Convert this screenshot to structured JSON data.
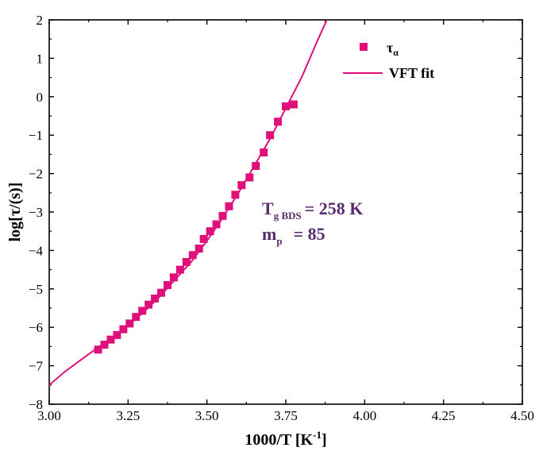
{
  "chart_data": {
    "type": "scatter",
    "xlabel": {
      "base": "1000/T [K",
      "sup": "-1",
      "end": "]"
    },
    "ylabel": "log[τ/(s)]",
    "xlim": [
      3.0,
      4.5
    ],
    "ylim": [
      -8,
      2
    ],
    "xticks": [
      "3.00",
      "3.25",
      "3.50",
      "3.75",
      "4.00",
      "4.25",
      "4.50"
    ],
    "yticks": [
      "2",
      "1",
      "0",
      "−1",
      "−2",
      "−3",
      "−4",
      "−5",
      "−6",
      "−7",
      "−8"
    ],
    "colors": {
      "series": "#e0107a",
      "annotation": "#5a2a6e",
      "axis": "#000000"
    },
    "series": [
      {
        "name": "τα",
        "name_base": "τ",
        "name_sub": "α",
        "kind": "scatter",
        "marker": "square",
        "x": [
          3.155,
          3.175,
          3.195,
          3.215,
          3.235,
          3.255,
          3.275,
          3.295,
          3.315,
          3.335,
          3.355,
          3.375,
          3.395,
          3.415,
          3.435,
          3.455,
          3.475,
          3.49,
          3.51,
          3.53,
          3.55,
          3.57,
          3.59,
          3.61,
          3.635,
          3.655,
          3.68,
          3.7,
          3.725,
          3.75,
          3.775
        ],
        "y": [
          -6.58,
          -6.45,
          -6.32,
          -6.2,
          -6.05,
          -5.9,
          -5.73,
          -5.57,
          -5.41,
          -5.25,
          -5.1,
          -4.9,
          -4.7,
          -4.5,
          -4.3,
          -4.12,
          -3.95,
          -3.7,
          -3.5,
          -3.32,
          -3.1,
          -2.85,
          -2.55,
          -2.3,
          -2.1,
          -1.8,
          -1.45,
          -1.0,
          -0.65,
          -0.25,
          -0.2
        ]
      },
      {
        "name": "VFT fit",
        "kind": "line",
        "x": [
          3.0,
          3.05,
          3.1,
          3.15,
          3.2,
          3.25,
          3.3,
          3.35,
          3.4,
          3.45,
          3.5,
          3.55,
          3.6,
          3.65,
          3.7,
          3.75,
          3.8,
          3.85,
          3.88
        ],
        "y": [
          -7.5,
          -7.15,
          -6.85,
          -6.55,
          -6.28,
          -5.95,
          -5.6,
          -5.2,
          -4.75,
          -4.3,
          -3.75,
          -3.15,
          -2.5,
          -1.8,
          -1.1,
          -0.3,
          0.5,
          1.45,
          2.0
        ]
      }
    ],
    "legend": {
      "placement": "top-right"
    },
    "annotation": {
      "line1": {
        "base": "T",
        "sub": "g BDS",
        "value": "= 258 K"
      },
      "line2": {
        "base": "m",
        "sub": "p",
        "value": "=  85"
      }
    }
  }
}
